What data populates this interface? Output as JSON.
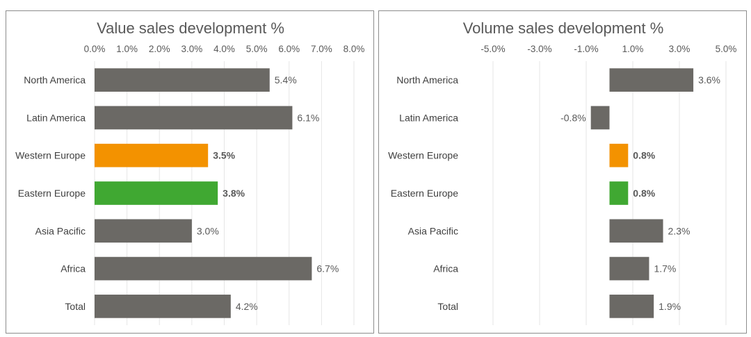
{
  "colors": {
    "default": "#6b6965",
    "western_europe": "#f39200",
    "eastern_europe": "#40a832"
  },
  "chart_data": [
    {
      "type": "bar",
      "orientation": "horizontal",
      "title": "Value sales development %",
      "categories": [
        "North America",
        "Latin America",
        "Western Europe",
        "Eastern Europe",
        "Asia Pacific",
        "Africa",
        "Total"
      ],
      "values": [
        5.4,
        6.1,
        3.5,
        3.8,
        3.0,
        6.7,
        4.2
      ],
      "value_labels": [
        "5.4%",
        "6.1%",
        "3.5%",
        "3.8%",
        "3.0%",
        "6.7%",
        "4.2%"
      ],
      "bar_colors": [
        "#6b6965",
        "#6b6965",
        "#f39200",
        "#40a832",
        "#6b6965",
        "#6b6965",
        "#6b6965"
      ],
      "bold_labels": [
        false,
        false,
        true,
        true,
        false,
        false,
        false
      ],
      "ticks": [
        0,
        1,
        2,
        3,
        4,
        5,
        6,
        7,
        8
      ],
      "tick_labels": [
        "0.0%",
        "1.0%",
        "2.0%",
        "3.0%",
        "4.0%",
        "5.0%",
        "6.0%",
        "7.0%",
        "8.0%"
      ],
      "xlim": [
        0,
        8
      ],
      "axis_position": "top",
      "grid": true,
      "legend": "none"
    },
    {
      "type": "bar",
      "orientation": "horizontal",
      "title": "Volume sales development %",
      "categories": [
        "North America",
        "Latin America",
        "Western Europe",
        "Eastern Europe",
        "Asia Pacific",
        "Africa",
        "Total"
      ],
      "values": [
        3.6,
        -0.8,
        0.8,
        0.8,
        2.3,
        1.7,
        1.9
      ],
      "value_labels": [
        "3.6%",
        "-0.8%",
        "0.8%",
        "0.8%",
        "2.3%",
        "1.7%",
        "1.9%"
      ],
      "bar_colors": [
        "#6b6965",
        "#6b6965",
        "#f39200",
        "#40a832",
        "#6b6965",
        "#6b6965",
        "#6b6965"
      ],
      "bold_labels": [
        false,
        false,
        true,
        true,
        false,
        false,
        false
      ],
      "ticks": [
        -5,
        -3,
        -1,
        1,
        3,
        5
      ],
      "tick_labels": [
        "-5.0%",
        "-3.0%",
        "-1.0%",
        "1.0%",
        "3.0%",
        "5.0%"
      ],
      "xlim": [
        -5,
        5
      ],
      "axis_position": "top",
      "grid": true,
      "legend": "none"
    }
  ]
}
